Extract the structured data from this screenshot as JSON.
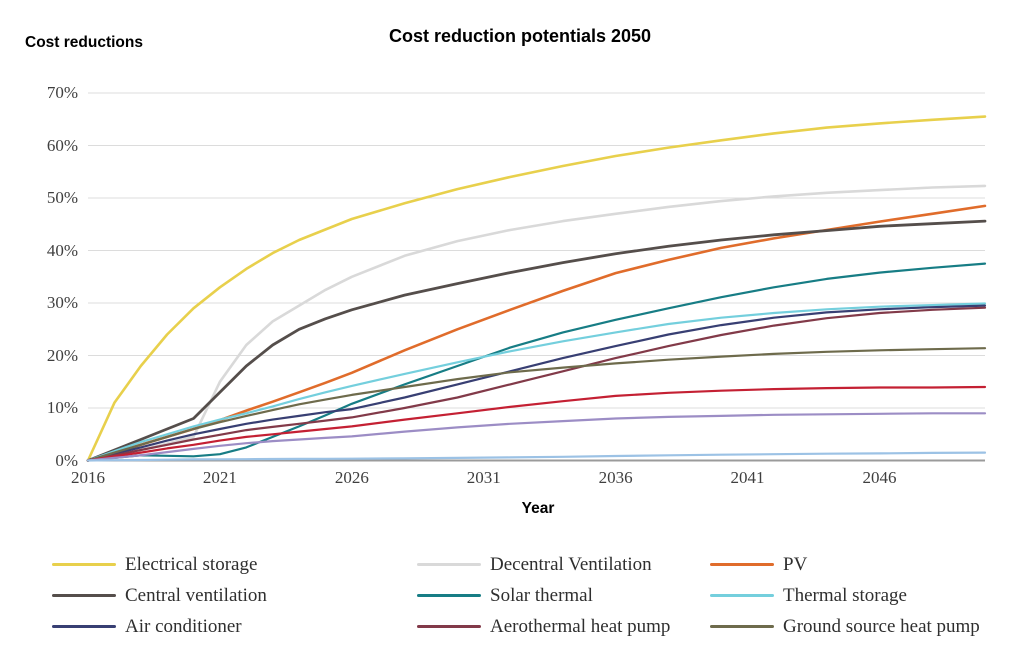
{
  "header": {
    "y_axis_caption": "Cost reductions",
    "title": "Cost reduction potentials 2050"
  },
  "x_axis": {
    "title": "Year",
    "ticks": [
      {
        "label": "2016",
        "year": 2016
      },
      {
        "label": "2021",
        "year": 2021
      },
      {
        "label": "2026",
        "year": 2026
      },
      {
        "label": "2031",
        "year": 2031
      },
      {
        "label": "2036",
        "year": 2036
      },
      {
        "label": "2041",
        "year": 2041
      },
      {
        "label": "2046",
        "year": 2046
      }
    ]
  },
  "y_axis": {
    "ticks": [
      {
        "label": "0%",
        "value": 0
      },
      {
        "label": "10%",
        "value": 10
      },
      {
        "label": "20%",
        "value": 20
      },
      {
        "label": "30%",
        "value": 30
      },
      {
        "label": "40%",
        "value": 40
      },
      {
        "label": "50%",
        "value": 50
      },
      {
        "label": "60%",
        "value": 60
      },
      {
        "label": "70%",
        "value": 70
      }
    ]
  },
  "style": {
    "gridline_color": "#dcdcdc",
    "axis_line_color": "#9b9b9b",
    "tick_text_color": "#3f3f3f"
  },
  "chart_data": {
    "type": "line",
    "title": "Cost reduction potentials 2050",
    "xlabel": "Year",
    "ylabel": "Cost reductions",
    "xlim": [
      2016,
      2050
    ],
    "ylim": [
      0,
      70
    ],
    "grid": "horizontal-only",
    "legend_position": "bottom",
    "x": [
      2016,
      2017,
      2018,
      2019,
      2020,
      2021,
      2022,
      2023,
      2024,
      2025,
      2026,
      2028,
      2030,
      2032,
      2034,
      2036,
      2038,
      2040,
      2042,
      2044,
      2046,
      2048,
      2050
    ],
    "series": [
      {
        "name": "Electrical storage",
        "color": "#e8d04c",
        "width": 2.6,
        "in_legend": true,
        "values": [
          0,
          11,
          18,
          24,
          29,
          33,
          36.5,
          39.5,
          42,
          44,
          46,
          49,
          51.7,
          54,
          56.1,
          58,
          59.6,
          61,
          62.3,
          63.4,
          64.2,
          64.9,
          65.5
        ]
      },
      {
        "name": "Decentral Ventilation",
        "color": "#d9d9d9",
        "width": 2.6,
        "in_legend": true,
        "values": [
          0,
          1,
          2,
          3.2,
          4.5,
          15,
          22,
          26.5,
          29.5,
          32.5,
          35,
          39,
          41.8,
          43.9,
          45.6,
          47,
          48.3,
          49.4,
          50.3,
          51,
          51.5,
          52,
          52.3
        ]
      },
      {
        "name": "PV",
        "color": "#e06c2b",
        "width": 2.6,
        "in_legend": true,
        "values": [
          0,
          1.5,
          3,
          4.5,
          6,
          7.7,
          9.5,
          11.2,
          13,
          14.8,
          16.7,
          21,
          25,
          28.7,
          32.3,
          35.7,
          38.2,
          40.5,
          42.3,
          43.9,
          45.5,
          47,
          48.5
        ]
      },
      {
        "name": "Central ventilation",
        "color": "#554e4b",
        "width": 2.8,
        "in_legend": true,
        "values": [
          0,
          2,
          4,
          6,
          8,
          13,
          18,
          22,
          25,
          27,
          28.7,
          31.5,
          33.7,
          35.8,
          37.7,
          39.4,
          40.8,
          42,
          43,
          43.8,
          44.6,
          45.1,
          45.6
        ]
      },
      {
        "name": "Solar thermal",
        "color": "#177d85",
        "width": 2.2,
        "in_legend": true,
        "values": [
          0,
          0.5,
          1,
          0.9,
          0.8,
          1.2,
          2.5,
          4.5,
          6.5,
          8.6,
          10.8,
          14.5,
          18,
          21.5,
          24.4,
          26.8,
          29,
          31.1,
          33,
          34.6,
          35.8,
          36.7,
          37.5
        ]
      },
      {
        "name": "Thermal storage",
        "color": "#74cfdd",
        "width": 2.2,
        "in_legend": true,
        "values": [
          0,
          1.8,
          3.5,
          5,
          6.5,
          7.8,
          9,
          10.3,
          11.7,
          13,
          14.2,
          16.5,
          18.7,
          20.8,
          22.7,
          24.4,
          26,
          27.2,
          28.1,
          28.8,
          29.3,
          29.6,
          29.9
        ]
      },
      {
        "name": "Air conditioner",
        "color": "#383f73",
        "width": 2.2,
        "in_legend": true,
        "values": [
          0,
          1.3,
          2.5,
          3.8,
          5,
          6,
          7,
          7.8,
          8.5,
          9.2,
          9.8,
          12,
          14.5,
          17,
          19.5,
          21.8,
          24,
          25.8,
          27.2,
          28.2,
          28.8,
          29.2,
          29.5
        ]
      },
      {
        "name": "Aerothermal heat pump",
        "color": "#823a49",
        "width": 2.2,
        "in_legend": true,
        "values": [
          0,
          1,
          2,
          3,
          4,
          4.9,
          5.8,
          6.4,
          7,
          7.6,
          8.2,
          10,
          12,
          14.5,
          17,
          19.5,
          21.8,
          23.9,
          25.7,
          27.1,
          28.1,
          28.7,
          29.1
        ]
      },
      {
        "name": "Ground source heat pump",
        "color": "#6e6b4c",
        "width": 2.2,
        "in_legend": true,
        "values": [
          0,
          1.5,
          3,
          4.5,
          6,
          7.3,
          8.5,
          9.6,
          10.7,
          11.6,
          12.5,
          14,
          15.5,
          16.8,
          17.7,
          18.5,
          19.2,
          19.8,
          20.3,
          20.7,
          21,
          21.2,
          21.4
        ]
      },
      {
        "name": "unlabeled-red",
        "color": "#c42033",
        "width": 2.2,
        "in_legend": false,
        "values": [
          0,
          0.8,
          1.5,
          2.3,
          3,
          3.8,
          4.5,
          5,
          5.5,
          6,
          6.5,
          7.8,
          9,
          10.2,
          11.3,
          12.3,
          12.9,
          13.3,
          13.6,
          13.8,
          13.9,
          13.9,
          14
        ]
      },
      {
        "name": "unlabeled-lavender",
        "color": "#9c8dc5",
        "width": 2.2,
        "in_legend": false,
        "values": [
          0,
          0.5,
          1,
          1.6,
          2.2,
          2.8,
          3.3,
          3.7,
          4,
          4.3,
          4.6,
          5.5,
          6.3,
          7,
          7.5,
          8,
          8.3,
          8.5,
          8.7,
          8.8,
          8.9,
          9,
          9
        ]
      },
      {
        "name": "unlabeled-light-blue",
        "color": "#9cc2e5",
        "width": 2.2,
        "in_legend": false,
        "values": [
          0,
          0.05,
          0.1,
          0.15,
          0.2,
          0.22,
          0.25,
          0.28,
          0.3,
          0.32,
          0.35,
          0.4,
          0.5,
          0.6,
          0.7,
          0.85,
          1,
          1.1,
          1.2,
          1.3,
          1.35,
          1.45,
          1.5
        ]
      }
    ]
  },
  "legend": {
    "items": [
      {
        "label": "Electrical storage",
        "color": "#e8d04c"
      },
      {
        "label": "Decentral Ventilation",
        "color": "#d9d9d9"
      },
      {
        "label": "PV",
        "color": "#e06c2b"
      },
      {
        "label": "Central ventilation",
        "color": "#554e4b"
      },
      {
        "label": "Solar thermal",
        "color": "#177d85"
      },
      {
        "label": "Thermal storage",
        "color": "#74cfdd"
      },
      {
        "label": "Air conditioner",
        "color": "#383f73"
      },
      {
        "label": "Aerothermal heat pump",
        "color": "#823a49"
      },
      {
        "label": "Ground source heat pump",
        "color": "#6e6b4c"
      }
    ]
  }
}
